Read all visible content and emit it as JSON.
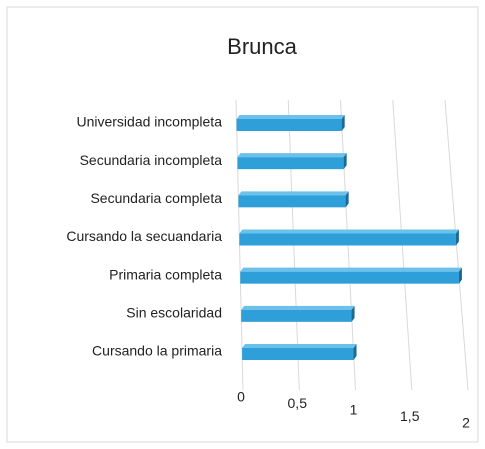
{
  "chart_data": {
    "type": "bar",
    "orientation": "horizontal",
    "title": "Brunca",
    "categories": [
      "Universidad incompleta",
      "Secundaria incompleta",
      "Secundaria completa",
      "Cursando la secuandaria",
      "Primaria completa",
      "Sin escolaridad",
      "Cursando la primaria"
    ],
    "values": [
      1,
      1,
      1,
      2,
      2,
      1,
      1
    ],
    "color": "#2e9fd9",
    "xlim": [
      0,
      2
    ],
    "xticks": [
      0,
      {
        "value": 0.5,
        "label": "0,5"
      },
      1,
      {
        "value": 1.5,
        "label": "1,5"
      },
      2
    ],
    "grid": true
  }
}
